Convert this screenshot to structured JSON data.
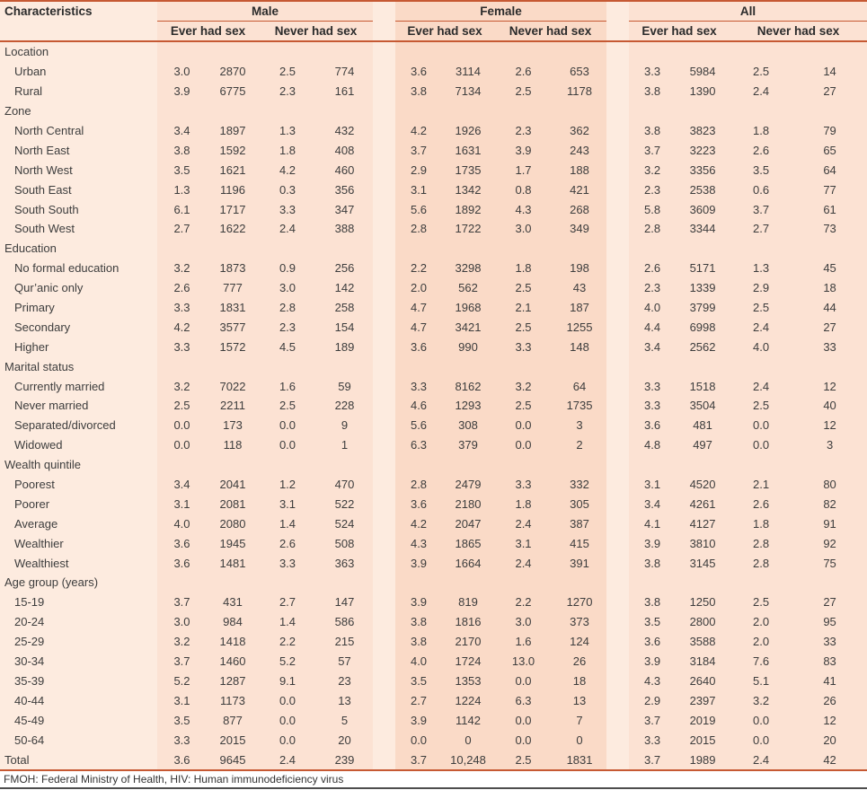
{
  "table": {
    "char_header": "Characteristics",
    "groups": [
      {
        "label": "Male"
      },
      {
        "label": "Female"
      },
      {
        "label": "All"
      }
    ],
    "subheaders": [
      "Ever had sex",
      "Never had sex"
    ],
    "sections": [
      {
        "label": "Location",
        "rows": [
          {
            "label": "Urban",
            "values": [
              "3.0",
              "2870",
              "2.5",
              "774",
              "3.6",
              "3114",
              "2.6",
              "653",
              "3.3",
              "5984",
              "2.5",
              "14"
            ]
          },
          {
            "label": "Rural",
            "values": [
              "3.9",
              "6775",
              "2.3",
              "161",
              "3.8",
              "7134",
              "2.5",
              "1178",
              "3.8",
              "1390",
              "2.4",
              "27"
            ]
          }
        ]
      },
      {
        "label": "Zone",
        "rows": [
          {
            "label": "North Central",
            "values": [
              "3.4",
              "1897",
              "1.3",
              "432",
              "4.2",
              "1926",
              "2.3",
              "362",
              "3.8",
              "3823",
              "1.8",
              "79"
            ]
          },
          {
            "label": "North East",
            "values": [
              "3.8",
              "1592",
              "1.8",
              "408",
              "3.7",
              "1631",
              "3.9",
              "243",
              "3.7",
              "3223",
              "2.6",
              "65"
            ]
          },
          {
            "label": "North West",
            "values": [
              "3.5",
              "1621",
              "4.2",
              "460",
              "2.9",
              "1735",
              "1.7",
              "188",
              "3.2",
              "3356",
              "3.5",
              "64"
            ]
          },
          {
            "label": "South East",
            "values": [
              "1.3",
              "1196",
              "0.3",
              "356",
              "3.1",
              "1342",
              "0.8",
              "421",
              "2.3",
              "2538",
              "0.6",
              "77"
            ]
          },
          {
            "label": "South South",
            "values": [
              "6.1",
              "1717",
              "3.3",
              "347",
              "5.6",
              "1892",
              "4.3",
              "268",
              "5.8",
              "3609",
              "3.7",
              "61"
            ]
          },
          {
            "label": "South West",
            "values": [
              "2.7",
              "1622",
              "2.4",
              "388",
              "2.8",
              "1722",
              "3.0",
              "349",
              "2.8",
              "3344",
              "2.7",
              "73"
            ]
          }
        ]
      },
      {
        "label": "Education",
        "rows": [
          {
            "label": "No formal education",
            "values": [
              "3.2",
              "1873",
              "0.9",
              "256",
              "2.2",
              "3298",
              "1.8",
              "198",
              "2.6",
              "5171",
              "1.3",
              "45"
            ]
          },
          {
            "label": "Qur’anic only",
            "values": [
              "2.6",
              "777",
              "3.0",
              "142",
              "2.0",
              "562",
              "2.5",
              "43",
              "2.3",
              "1339",
              "2.9",
              "18"
            ]
          },
          {
            "label": "Primary",
            "values": [
              "3.3",
              "1831",
              "2.8",
              "258",
              "4.7",
              "1968",
              "2.1",
              "187",
              "4.0",
              "3799",
              "2.5",
              "44"
            ]
          },
          {
            "label": "Secondary",
            "values": [
              "4.2",
              "3577",
              "2.3",
              "154",
              "4.7",
              "3421",
              "2.5",
              "1255",
              "4.4",
              "6998",
              "2.4",
              "27"
            ]
          },
          {
            "label": "Higher",
            "values": [
              "3.3",
              "1572",
              "4.5",
              "189",
              "3.6",
              "990",
              "3.3",
              "148",
              "3.4",
              "2562",
              "4.0",
              "33"
            ]
          }
        ]
      },
      {
        "label": "Marital status",
        "rows": [
          {
            "label": "Currently married",
            "values": [
              "3.2",
              "7022",
              "1.6",
              "59",
              "3.3",
              "8162",
              "3.2",
              "64",
              "3.3",
              "1518",
              "2.4",
              "12"
            ]
          },
          {
            "label": "Never married",
            "values": [
              "2.5",
              "2211",
              "2.5",
              "228",
              "4.6",
              "1293",
              "2.5",
              "1735",
              "3.3",
              "3504",
              "2.5",
              "40"
            ]
          },
          {
            "label": "Separated/divorced",
            "values": [
              "0.0",
              "173",
              "0.0",
              "9",
              "5.6",
              "308",
              "0.0",
              "3",
              "3.6",
              "481",
              "0.0",
              "12"
            ]
          },
          {
            "label": "Widowed",
            "values": [
              "0.0",
              "118",
              "0.0",
              "1",
              "6.3",
              "379",
              "0.0",
              "2",
              "4.8",
              "497",
              "0.0",
              "3"
            ]
          }
        ]
      },
      {
        "label": "Wealth quintile",
        "rows": [
          {
            "label": "Poorest",
            "values": [
              "3.4",
              "2041",
              "1.2",
              "470",
              "2.8",
              "2479",
              "3.3",
              "332",
              "3.1",
              "4520",
              "2.1",
              "80"
            ]
          },
          {
            "label": "Poorer",
            "values": [
              "3.1",
              "2081",
              "3.1",
              "522",
              "3.6",
              "2180",
              "1.8",
              "305",
              "3.4",
              "4261",
              "2.6",
              "82"
            ]
          },
          {
            "label": "Average",
            "values": [
              "4.0",
              "2080",
              "1.4",
              "524",
              "4.2",
              "2047",
              "2.4",
              "387",
              "4.1",
              "4127",
              "1.8",
              "91"
            ]
          },
          {
            "label": "Wealthier",
            "values": [
              "3.6",
              "1945",
              "2.6",
              "508",
              "4.3",
              "1865",
              "3.1",
              "415",
              "3.9",
              "3810",
              "2.8",
              "92"
            ]
          },
          {
            "label": "Wealthiest",
            "values": [
              "3.6",
              "1481",
              "3.3",
              "363",
              "3.9",
              "1664",
              "2.4",
              "391",
              "3.8",
              "3145",
              "2.8",
              "75"
            ]
          }
        ]
      },
      {
        "label": "Age group (years)",
        "rows": [
          {
            "label": "15-19",
            "values": [
              "3.7",
              "431",
              "2.7",
              "147",
              "3.9",
              "819",
              "2.2",
              "1270",
              "3.8",
              "1250",
              "2.5",
              "27"
            ]
          },
          {
            "label": "20-24",
            "values": [
              "3.0",
              "984",
              "1.4",
              "586",
              "3.8",
              "1816",
              "3.0",
              "373",
              "3.5",
              "2800",
              "2.0",
              "95"
            ]
          },
          {
            "label": "25-29",
            "values": [
              "3.2",
              "1418",
              "2.2",
              "215",
              "3.8",
              "2170",
              "1.6",
              "124",
              "3.6",
              "3588",
              "2.0",
              "33"
            ]
          },
          {
            "label": "30-34",
            "values": [
              "3.7",
              "1460",
              "5.2",
              "57",
              "4.0",
              "1724",
              "13.0",
              "26",
              "3.9",
              "3184",
              "7.6",
              "83"
            ]
          },
          {
            "label": "35-39",
            "values": [
              "5.2",
              "1287",
              "9.1",
              "23",
              "3.5",
              "1353",
              "0.0",
              "18",
              "4.3",
              "2640",
              "5.1",
              "41"
            ]
          },
          {
            "label": "40-44",
            "values": [
              "3.1",
              "1173",
              "0.0",
              "13",
              "2.7",
              "1224",
              "6.3",
              "13",
              "2.9",
              "2397",
              "3.2",
              "26"
            ]
          },
          {
            "label": "45-49",
            "values": [
              "3.5",
              "877",
              "0.0",
              "5",
              "3.9",
              "1142",
              "0.0",
              "7",
              "3.7",
              "2019",
              "0.0",
              "12"
            ]
          },
          {
            "label": "50-64",
            "values": [
              "3.3",
              "2015",
              "0.0",
              "20",
              "0.0",
              "0",
              "0.0",
              "0",
              "3.3",
              "2015",
              "0.0",
              "20"
            ]
          }
        ]
      }
    ],
    "total": {
      "label": "Total",
      "values": [
        "3.6",
        "9645",
        "2.4",
        "239",
        "3.7",
        "10,248",
        "2.5",
        "1831",
        "3.7",
        "1989",
        "2.4",
        "42"
      ]
    },
    "footnote": "FMOH: Federal Ministry of Health, HIV: Human immunodeficiency virus"
  },
  "colors": {
    "base_bg": "#fdebdf",
    "male_band": "#fce2d3",
    "female_band": "#fadac7",
    "all_band": "#fce2d3",
    "rule_accent": "#c65933",
    "bottom_rule": "#4d4d4d",
    "text": "#3d3d3d"
  }
}
